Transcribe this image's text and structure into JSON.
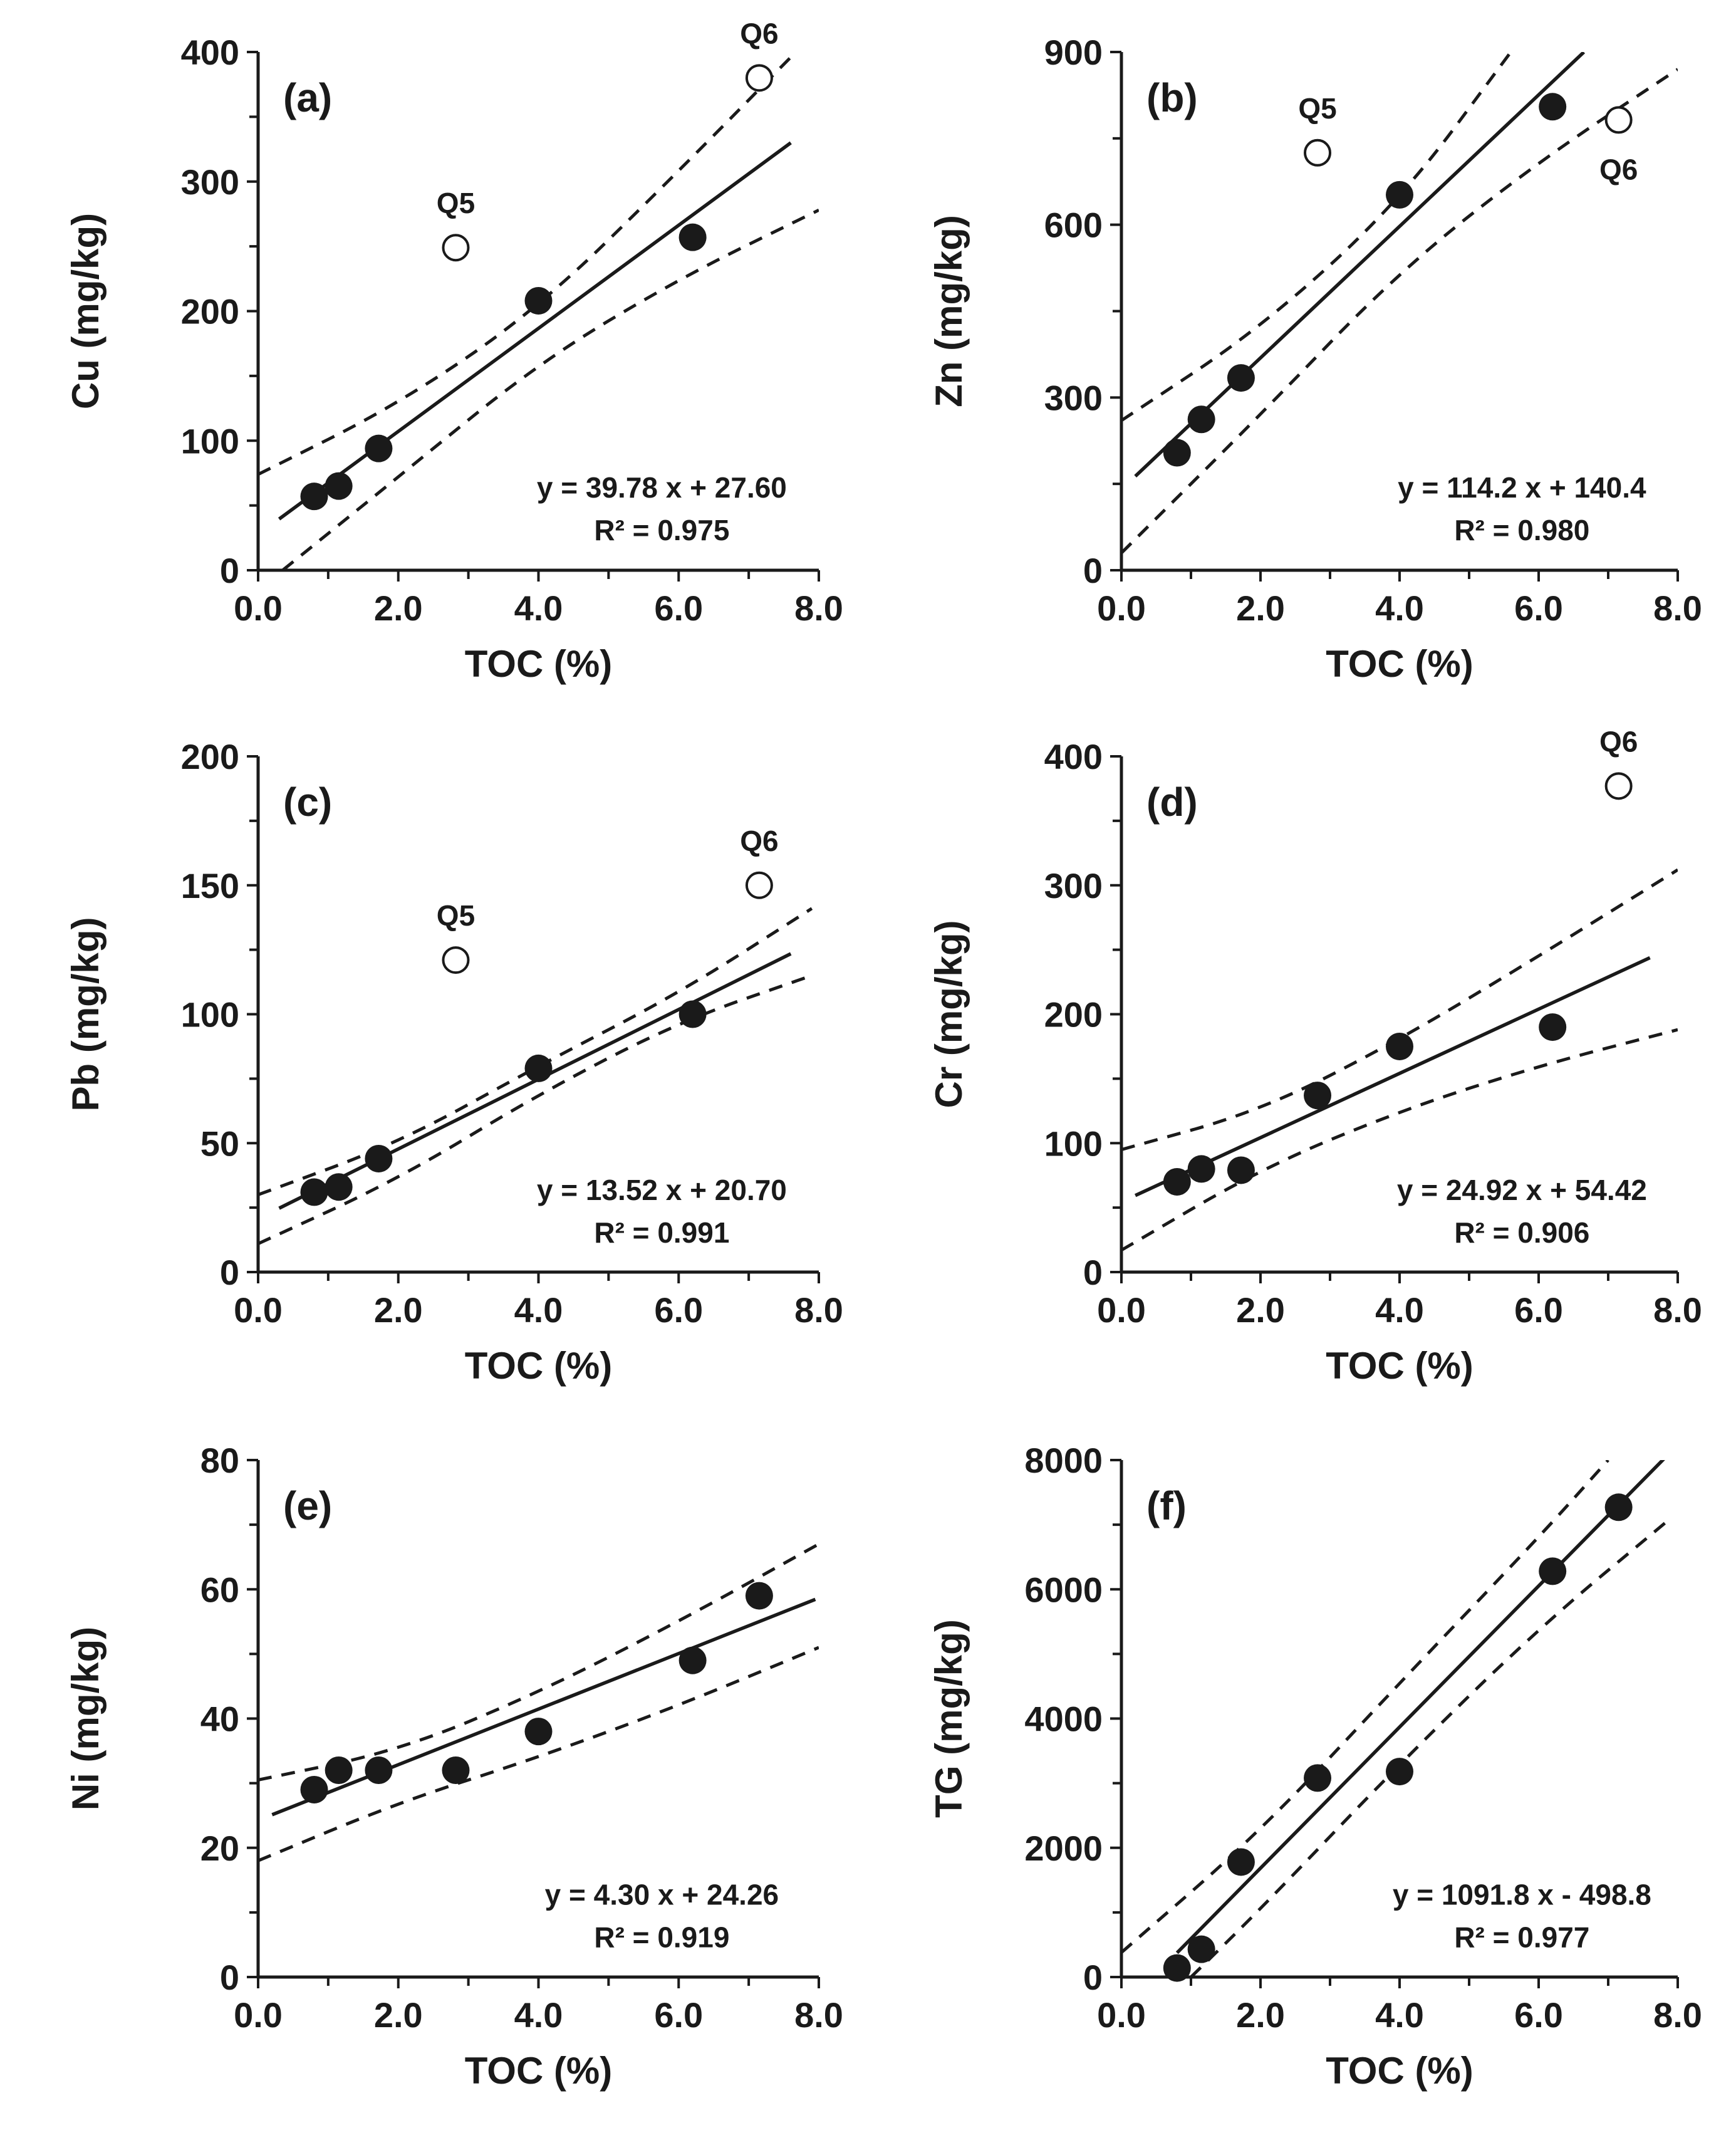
{
  "chart_data": [
    {
      "type": "scatter",
      "panel": "(a)",
      "xlabel": "TOC (%)",
      "ylabel": "Cu (mg/kg)",
      "xlim": [
        0,
        8
      ],
      "ylim": [
        0,
        400
      ],
      "xticks": [
        "0.0",
        "2.0",
        "4.0",
        "6.0",
        "8.0"
      ],
      "yticks": [
        "0",
        "100",
        "200",
        "300",
        "400"
      ],
      "equation": "y = 39.78 x + 27.60",
      "r2": "R² = 0.975",
      "fit": {
        "slope": 39.78,
        "intercept": 27.6,
        "x_range": [
          0.3,
          7.6
        ]
      },
      "bands": {
        "upper": [
          [
            0,
            74
          ],
          [
            2,
            128
          ],
          [
            4,
            202
          ],
          [
            6,
            308
          ],
          [
            7.6,
            396
          ]
        ],
        "lower": [
          [
            0.35,
            0
          ],
          [
            2,
            72
          ],
          [
            4,
            160
          ],
          [
            6,
            225
          ],
          [
            8,
            278
          ]
        ]
      },
      "series": [
        {
          "name": "fitted",
          "points": [
            [
              0.8,
              57
            ],
            [
              1.15,
              65
            ],
            [
              1.72,
              94
            ],
            [
              4.0,
              208
            ],
            [
              6.2,
              257
            ]
          ]
        },
        {
          "name": "outliers",
          "points": [
            [
              2.82,
              249,
              "Q5"
            ],
            [
              7.15,
              380,
              "Q6"
            ]
          ]
        }
      ]
    },
    {
      "type": "scatter",
      "panel": "(b)",
      "xlabel": "TOC (%)",
      "ylabel": "Zn (mg/kg)",
      "xlim": [
        0,
        8
      ],
      "ylim": [
        0,
        900
      ],
      "xticks": [
        "0.0",
        "2.0",
        "4.0",
        "6.0",
        "8.0"
      ],
      "yticks": [
        "0",
        "300",
        "600",
        "900"
      ],
      "equation": "y = 114.2 x + 140.4",
      "r2": "R² = 0.980",
      "fit": {
        "slope": 114.2,
        "intercept": 140.4,
        "x_range": [
          0.2,
          6.65
        ]
      },
      "bands": {
        "upper": [
          [
            0,
            260
          ],
          [
            2,
            420
          ],
          [
            4,
            640
          ],
          [
            5.6,
            900
          ]
        ],
        "lower": [
          [
            0,
            30
          ],
          [
            2,
            270
          ],
          [
            4,
            520
          ],
          [
            6,
            710
          ],
          [
            8,
            870
          ]
        ]
      },
      "series": [
        {
          "name": "fitted",
          "points": [
            [
              0.8,
              204
            ],
            [
              1.15,
              262
            ],
            [
              1.72,
              334
            ],
            [
              4.0,
              652
            ],
            [
              6.2,
              805
            ]
          ]
        },
        {
          "name": "outliers",
          "points": [
            [
              2.82,
              725,
              "Q5"
            ],
            [
              7.15,
              782,
              "Q6"
            ]
          ]
        }
      ]
    },
    {
      "type": "scatter",
      "panel": "(c)",
      "xlabel": "TOC (%)",
      "ylabel": "Pb (mg/kg)",
      "xlim": [
        0,
        8
      ],
      "ylim": [
        0,
        200
      ],
      "xticks": [
        "0.0",
        "2.0",
        "4.0",
        "6.0",
        "8.0"
      ],
      "yticks": [
        "0",
        "50",
        "100",
        "150",
        "200"
      ],
      "equation": "y = 13.52 x + 20.70",
      "r2": "R² = 0.991",
      "fit": {
        "slope": 13.52,
        "intercept": 20.7,
        "x_range": [
          0.3,
          7.6
        ]
      },
      "bands": {
        "upper": [
          [
            0,
            30
          ],
          [
            2,
            50
          ],
          [
            4,
            80
          ],
          [
            6,
            108
          ],
          [
            7.9,
            141
          ]
        ],
        "lower": [
          [
            0,
            11
          ],
          [
            2,
            36
          ],
          [
            4,
            69
          ],
          [
            6,
            97
          ],
          [
            7.9,
            115
          ]
        ]
      },
      "series": [
        {
          "name": "fitted",
          "points": [
            [
              0.8,
              31
            ],
            [
              1.15,
              33
            ],
            [
              1.72,
              44
            ],
            [
              4.0,
              79
            ],
            [
              6.2,
              100
            ]
          ]
        },
        {
          "name": "outliers",
          "points": [
            [
              2.82,
              121,
              "Q5"
            ],
            [
              7.15,
              150,
              "Q6"
            ]
          ]
        }
      ]
    },
    {
      "type": "scatter",
      "panel": "(d)",
      "xlabel": "TOC (%)",
      "ylabel": "Cr (mg/kg)",
      "xlim": [
        0,
        8
      ],
      "ylim": [
        0,
        400
      ],
      "xticks": [
        "0.0",
        "2.0",
        "4.0",
        "6.0",
        "8.0"
      ],
      "yticks": [
        "0",
        "100",
        "200",
        "300",
        "400"
      ],
      "equation": "y = 24.92 x + 54.42",
      "r2": "R² = 0.906",
      "fit": {
        "slope": 24.92,
        "intercept": 54.42,
        "x_range": [
          0.2,
          7.6
        ]
      },
      "bands": {
        "upper": [
          [
            0,
            95
          ],
          [
            2,
            125
          ],
          [
            4,
            180
          ],
          [
            6,
            245
          ],
          [
            8,
            312
          ]
        ],
        "lower": [
          [
            0,
            17
          ],
          [
            2,
            80
          ],
          [
            4,
            125
          ],
          [
            6,
            160
          ],
          [
            8,
            188
          ]
        ]
      },
      "series": [
        {
          "name": "fitted",
          "points": [
            [
              0.8,
              70
            ],
            [
              1.15,
              80
            ],
            [
              1.72,
              79
            ],
            [
              2.82,
              137
            ],
            [
              4.0,
              175
            ],
            [
              6.2,
              190
            ]
          ]
        },
        {
          "name": "outliers",
          "points": [
            [
              7.15,
              377,
              "Q6"
            ]
          ]
        }
      ]
    },
    {
      "type": "scatter",
      "panel": "(e)",
      "xlabel": "TOC (%)",
      "ylabel": "Ni (mg/kg)",
      "xlim": [
        0,
        8
      ],
      "ylim": [
        0,
        80
      ],
      "xticks": [
        "0.0",
        "2.0",
        "4.0",
        "6.0",
        "8.0"
      ],
      "yticks": [
        "0",
        "20",
        "40",
        "60",
        "80"
      ],
      "equation": "y = 4.30 x + 24.26",
      "r2": "R² = 0.919",
      "fit": {
        "slope": 4.3,
        "intercept": 24.26,
        "x_range": [
          0.2,
          7.95
        ]
      },
      "bands": {
        "upper": [
          [
            0,
            30.5
          ],
          [
            2,
            35
          ],
          [
            4,
            44
          ],
          [
            6,
            55
          ],
          [
            8,
            67
          ]
        ],
        "lower": [
          [
            0,
            18
          ],
          [
            2,
            27
          ],
          [
            4,
            34
          ],
          [
            6,
            42
          ],
          [
            8,
            51
          ]
        ]
      },
      "series": [
        {
          "name": "fitted",
          "points": [
            [
              0.8,
              29
            ],
            [
              1.15,
              32
            ],
            [
              1.72,
              32
            ],
            [
              2.82,
              32
            ],
            [
              4.0,
              38
            ],
            [
              6.2,
              49
            ],
            [
              7.15,
              59
            ]
          ]
        }
      ]
    },
    {
      "type": "scatter",
      "panel": "(f)",
      "xlabel": "TOC (%)",
      "ylabel": "TG (mg/kg)",
      "xlim": [
        0,
        8
      ],
      "ylim": [
        0,
        8000
      ],
      "xticks": [
        "0.0",
        "2.0",
        "4.0",
        "6.0",
        "8.0"
      ],
      "yticks": [
        "0",
        "2000",
        "4000",
        "6000",
        "8000"
      ],
      "equation": "y = 1091.8 x - 498.8",
      "r2": "R² = 0.977",
      "fit": {
        "slope": 1091.8,
        "intercept": -498.8,
        "x_range": [
          0.8,
          7.8
        ]
      },
      "bands": {
        "upper": [
          [
            0,
            380
          ],
          [
            2,
            2250
          ],
          [
            4,
            4550
          ],
          [
            6,
            6800
          ],
          [
            7.0,
            8000
          ]
        ],
        "lower": [
          [
            1.0,
            0
          ],
          [
            2,
            1050
          ],
          [
            4,
            3300
          ],
          [
            6,
            5400
          ],
          [
            7.9,
            7100
          ]
        ]
      },
      "series": [
        {
          "name": "fitted",
          "points": [
            [
              0.8,
              140
            ],
            [
              1.15,
              430
            ],
            [
              1.72,
              1780
            ],
            [
              2.82,
              3080
            ],
            [
              4.0,
              3180
            ],
            [
              6.2,
              6280
            ],
            [
              7.15,
              7270
            ]
          ]
        }
      ]
    }
  ]
}
